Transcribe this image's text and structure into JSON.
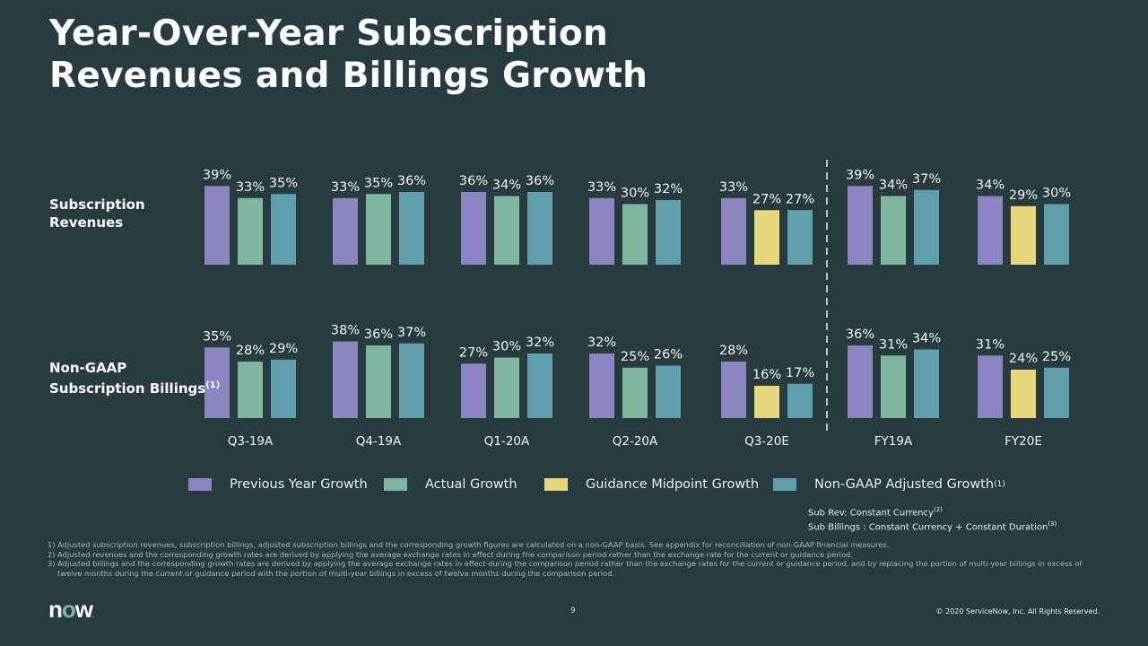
{
  "title_line1": "Year-Over-Year Subscription",
  "title_line2": "Revenues and Billings Growth",
  "colors": {
    "background": "#283b3e",
    "previous": "#8b86c2",
    "actual": "#7fb6a0",
    "guidance": "#e4d77c",
    "adjusted": "#5f9fae"
  },
  "chart_data": {
    "type": "bar",
    "categories": [
      "Q3-19A",
      "Q4-19A",
      "Q1-20A",
      "Q2-20A",
      "Q3-20E",
      "FY19A",
      "FY20E"
    ],
    "panels": [
      {
        "label_line1": "Subscription",
        "label_line2": "Revenues",
        "label_sup": "",
        "series": [
          {
            "name": "Previous Year Growth",
            "values": [
              39,
              33,
              36,
              33,
              33,
              39,
              34
            ]
          },
          {
            "name": "Actual Growth / Guidance Midpoint Growth",
            "values": [
              33,
              35,
              34,
              30,
              27,
              34,
              29
            ],
            "guidance_categories": [
              "Q3-20E",
              "FY20E"
            ]
          },
          {
            "name": "Non-GAAP Adjusted Growth",
            "values": [
              35,
              36,
              36,
              32,
              27,
              37,
              30
            ]
          }
        ]
      },
      {
        "label_line1": "Non-GAAP",
        "label_line2": "Subscription Billings",
        "label_sup": "(1)",
        "series": [
          {
            "name": "Previous Year Growth",
            "values": [
              35,
              38,
              27,
              32,
              28,
              36,
              31
            ]
          },
          {
            "name": "Actual Growth / Guidance Midpoint Growth",
            "values": [
              28,
              36,
              30,
              25,
              16,
              31,
              24
            ],
            "guidance_categories": [
              "Q3-20E",
              "FY20E"
            ]
          },
          {
            "name": "Non-GAAP Adjusted Growth",
            "values": [
              29,
              37,
              32,
              26,
              17,
              34,
              25
            ]
          }
        ]
      }
    ],
    "value_suffix": "%",
    "divider_between": [
      "Q3-20E",
      "FY19A"
    ],
    "grid": false,
    "legend_placement": "bottom"
  },
  "legend": [
    {
      "label": "Previous Year Growth",
      "sup": "",
      "color": "#8b86c2"
    },
    {
      "label": "Actual Growth",
      "sup": "",
      "color": "#7fb6a0"
    },
    {
      "label": "Guidance Midpoint Growth",
      "sup": "",
      "color": "#e4d77c"
    },
    {
      "label": "Non-GAAP Adjusted Growth",
      "sup": "(1)",
      "color": "#5f9fae"
    }
  ],
  "notes": {
    "line1": "Sub Rev: Constant Currency",
    "sup1": "(2)",
    "line2": "Sub Billings : Constant Currency + Constant Duration",
    "sup2": "(3)"
  },
  "footnotes": [
    "1) Adjusted subscription revenues, subscription billings, adjusted subscription billings and the corresponding growth figures are calculated on a non-GAAP basis. See appendix for reconciliation of non-GAAP financial measures.",
    "2) Adjusted revenues and the corresponding growth rates are derived by applying the average exchange rates in effect during the comparison period rather than the exchange rate for the current or guidance period.",
    "3) Adjusted billings and the corresponding growth rates are derived by applying the average exchange rates in effect during the comparison period rather than the exchange rates for the current or guidance period, and by replacing the portion of multi-year billings in excess of twelve months during the current or guidance period with the portion of multi-year billings in excess of twelve months during the comparison period."
  ],
  "logo": {
    "text": "now"
  },
  "page_number": "9",
  "copyright": "© 2020 ServiceNow, Inc. All Rights Reserved."
}
